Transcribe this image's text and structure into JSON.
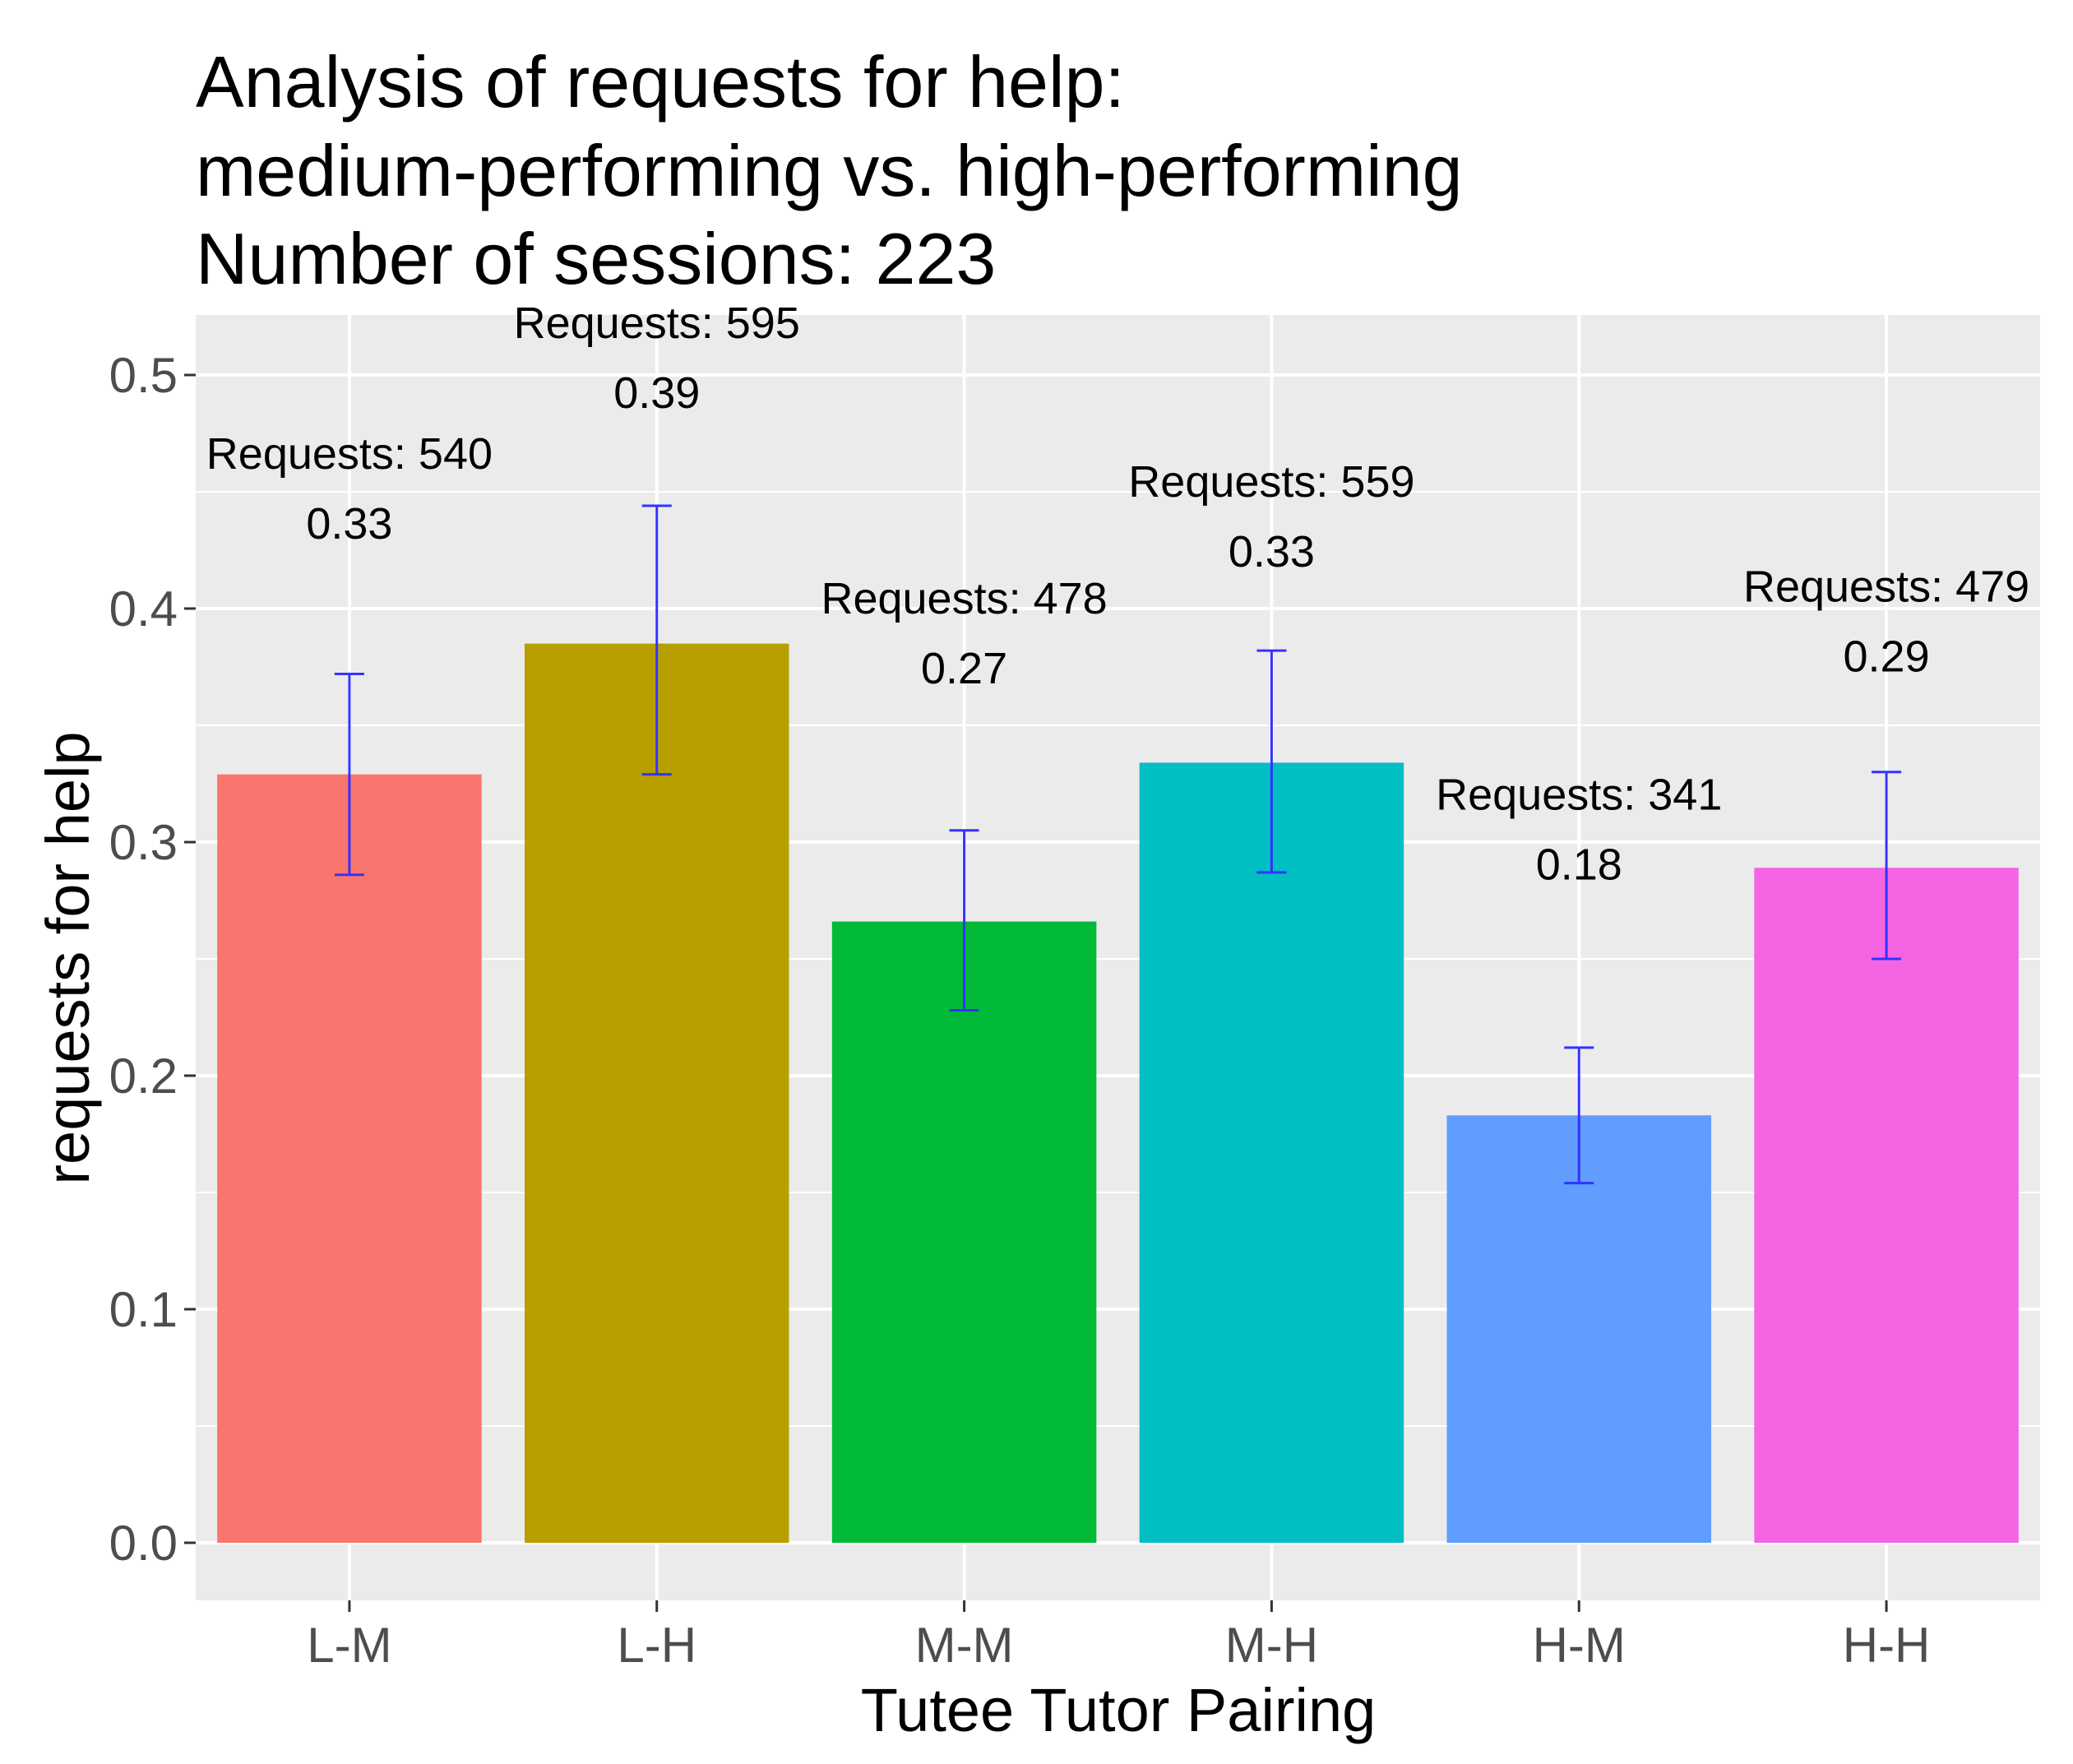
{
  "chart_data": {
    "type": "bar",
    "title_lines": [
      "Analysis of requests for help:",
      "medium-performing vs. high-performing",
      "Number of sessions: 223"
    ],
    "xlabel": "Tutee Tutor Pairing",
    "ylabel": "requests for help",
    "ylim": [
      0,
      0.525
    ],
    "yticks": [
      0.0,
      0.1,
      0.2,
      0.3,
      0.4,
      0.5
    ],
    "ytick_labels": [
      "0.0",
      "0.1",
      "0.2",
      "0.3",
      "0.4",
      "0.5"
    ],
    "categories": [
      "L-M",
      "L-H",
      "M-M",
      "M-H",
      "H-M",
      "H-H"
    ],
    "values": [
      0.329,
      0.385,
      0.266,
      0.334,
      0.183,
      0.289
    ],
    "error_low": [
      0.286,
      0.329,
      0.228,
      0.287,
      0.154,
      0.25
    ],
    "error_high": [
      0.372,
      0.444,
      0.305,
      0.382,
      0.212,
      0.33
    ],
    "value_labels": [
      "0.33",
      "0.39",
      "0.27",
      "0.33",
      "0.18",
      "0.29"
    ],
    "request_labels": [
      "Requests: 540",
      "Requests: 595",
      "Requests: 478",
      "Requests: 559",
      "Requests: 341",
      "Requests: 479"
    ],
    "annotation_y": [
      0.43,
      0.486,
      0.368,
      0.418,
      0.284,
      0.373
    ],
    "colors": [
      "#F8766D",
      "#B79F00",
      "#00BA38",
      "#00BFC4",
      "#619CFF",
      "#F564E3"
    ],
    "errorbar_color": "#3333ff",
    "panel_background": "#ebebeb",
    "grid_color": "#ffffff",
    "legend": "none"
  }
}
